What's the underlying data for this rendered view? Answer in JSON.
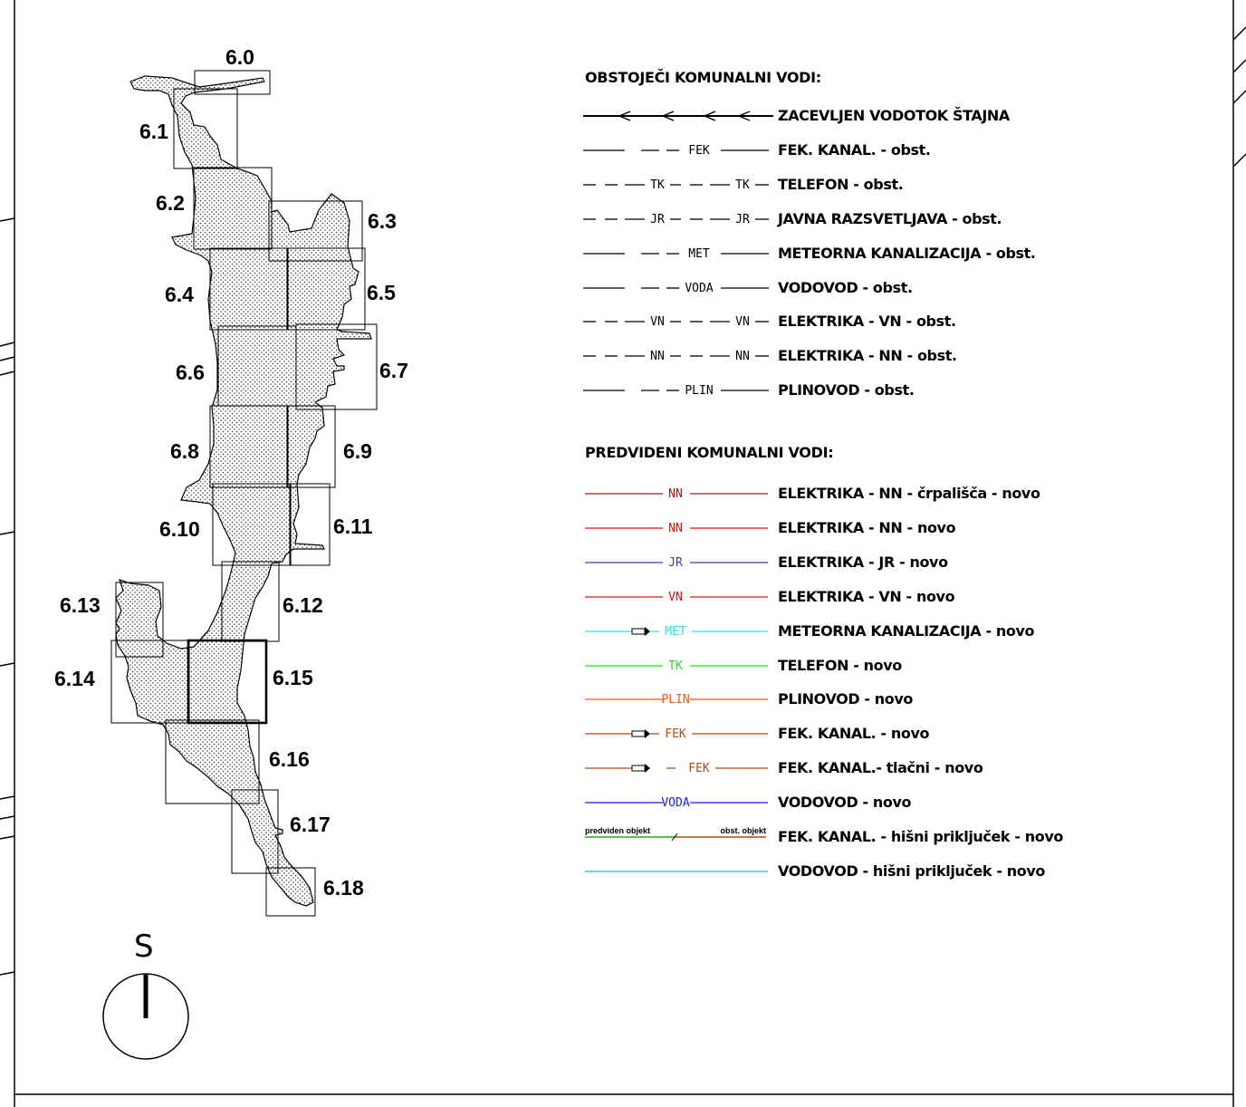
{
  "map": {
    "sheets": [
      "6.0",
      "6.1",
      "6.2",
      "6.3",
      "6.4",
      "6.5",
      "6.6",
      "6.7",
      "6.8",
      "6.9",
      "6.10",
      "6.11",
      "6.12",
      "6.13",
      "6.14",
      "6.15",
      "6.16",
      "6.17",
      "6.18"
    ],
    "north_label": "S"
  },
  "legend": {
    "existing_title": "OBSTOJEČI KOMUNALNI VODI:",
    "existing": [
      {
        "tag": "",
        "desc": "ZACEVLJEN VODOTOK ŠTAJNA",
        "color": "#000000",
        "style": "arrows"
      },
      {
        "tag": "FEK",
        "desc": "FEK. KANAL. - obst.",
        "color": "#000000",
        "style": "long-dash"
      },
      {
        "tag": "TK",
        "desc": "TELEFON - obst.",
        "color": "#000000",
        "style": "short-dash"
      },
      {
        "tag": "JR",
        "desc": "JAVNA RAZSVETLJAVA - obst.",
        "color": "#000000",
        "style": "short-dash"
      },
      {
        "tag": "MET",
        "desc": "METEORNA KANALIZACIJA - obst.",
        "color": "#000000",
        "style": "long-dash"
      },
      {
        "tag": "VODA",
        "desc": "VODOVOD - obst.",
        "color": "#000000",
        "style": "long-dash"
      },
      {
        "tag": "VN",
        "desc": "ELEKTRIKA - VN - obst.",
        "color": "#000000",
        "style": "short-dash"
      },
      {
        "tag": "NN",
        "desc": "ELEKTRIKA - NN - obst.",
        "color": "#000000",
        "style": "short-dash"
      },
      {
        "tag": "PLIN",
        "desc": "PLINOVOD - obst.",
        "color": "#000000",
        "style": "long-dash"
      }
    ],
    "planned_title": "PREDVIDENI KOMUNALNI VODI:",
    "planned": [
      {
        "tag": "NN",
        "desc": "ELEKTRIKA - NN - črpališča - novo",
        "color": "#a01818",
        "style": "solid"
      },
      {
        "tag": "NN",
        "desc": "ELEKTRIKA - NN - novo",
        "color": "#e01010",
        "style": "solid"
      },
      {
        "tag": "JR",
        "desc": "ELEKTRIKA - JR - novo",
        "color": "#5a28b4",
        "style": "solid"
      },
      {
        "tag": "VN",
        "desc": "ELEKTRIKA - VN - novo",
        "color": "#e01010",
        "style": "solid"
      },
      {
        "tag": "MET",
        "desc": "METEORNA KANALIZACIJA - novo",
        "color": "#20e8ee",
        "style": "arrow"
      },
      {
        "tag": "TK",
        "desc": "TELEFON - novo",
        "color": "#22dd22",
        "style": "solid"
      },
      {
        "tag": "PLIN",
        "desc": "PLINOVOD - novo",
        "color": "#ee5a10",
        "style": "solid"
      },
      {
        "tag": "FEK",
        "desc": "FEK. KANAL. - novo",
        "color": "#b04a18",
        "style": "arrow"
      },
      {
        "tag": "FEK",
        "desc": "FEK. KANAL.- tlačni - novo",
        "color": "#b04a18",
        "style": "arrow-gap"
      },
      {
        "tag": "VODA",
        "desc": "VODOVOD - novo",
        "color": "#1c1ce0",
        "style": "solid"
      },
      {
        "tag": "",
        "desc": "FEK. KANAL. - hišni priključek - novo",
        "color": "#b04a18",
        "style": "split",
        "left_label": "predviden objekt",
        "right_label": "obst. objekt",
        "left_color": "#22aa22"
      },
      {
        "tag": "",
        "desc": "VODOVOD - hišni priključek - novo",
        "color": "#20b4dc",
        "style": "plain"
      }
    ]
  }
}
